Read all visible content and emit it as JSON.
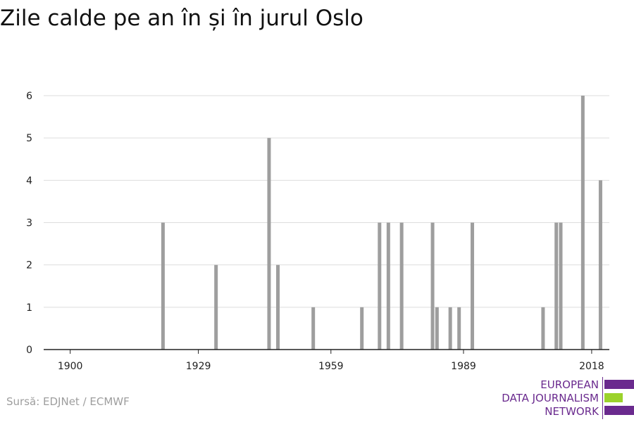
{
  "title": "Zile calde pe an în și în jurul Oslo",
  "source": "Sursă: EDJNet / ECMWF",
  "logo": {
    "line1": "EUROPEAN",
    "line2": "DATA JOURNALISM",
    "line3": "NETWORK",
    "purple": "#6a2a8e",
    "green": "#9bd22b"
  },
  "chart_data": {
    "type": "bar",
    "xlim": [
      1894,
      2022
    ],
    "ylim": [
      0,
      6
    ],
    "xticks": [
      1900,
      1929,
      1959,
      1989,
      2018
    ],
    "yticks": [
      0,
      1,
      2,
      3,
      4,
      5,
      6
    ],
    "grid": true,
    "bar_color": "#9e9e9e",
    "x": [
      1921,
      1933,
      1945,
      1947,
      1955,
      1966,
      1970,
      1972,
      1975,
      1982,
      1983,
      1986,
      1988,
      1991,
      2007,
      2010,
      2011,
      2016,
      2020
    ],
    "values": [
      3,
      2,
      5,
      2,
      1,
      1,
      3,
      3,
      3,
      3,
      1,
      1,
      1,
      3,
      1,
      3,
      3,
      6,
      4
    ]
  }
}
